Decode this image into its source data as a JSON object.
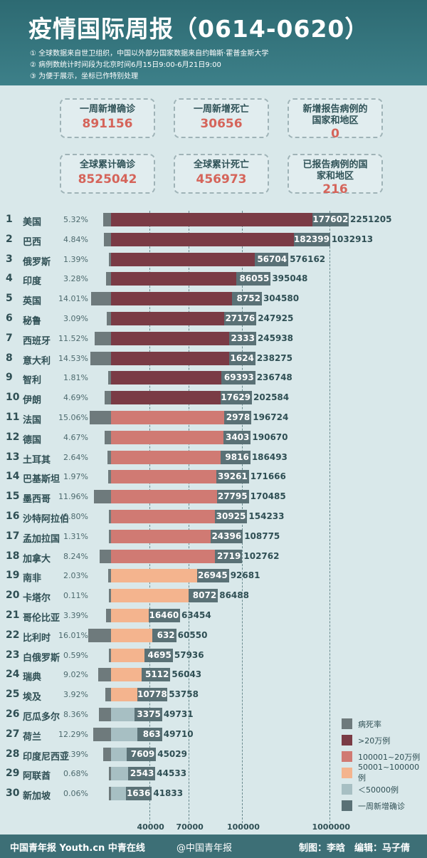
{
  "header": {
    "title": "疫情国际周报（0614-0620）",
    "notes": [
      "① 全球数据来自世卫组织，中国以外部分国家数据来自约翰斯·霍普金斯大学",
      "② 病例数统计时间段为北京时间6月15日9:00-6月21日9:00",
      "③ 为便于展示，坐标已作特别处理"
    ]
  },
  "stats": {
    "weekly_new_confirmed": {
      "label": "一周新增确诊",
      "value": "891156"
    },
    "weekly_new_deaths": {
      "label": "一周新增死亡",
      "value": "30656"
    },
    "new_reporting_countries": {
      "label": "新增报告病例的国家和地区",
      "value": "0"
    },
    "total_confirmed": {
      "label": "全球累计确诊",
      "value": "8525042"
    },
    "total_deaths": {
      "label": "全球累计死亡",
      "value": "456973"
    },
    "reported_countries": {
      "label": "已报告病例的国家和地区",
      "value": "216"
    }
  },
  "colors": {
    "gt200k": "#7a3b45",
    "c100k_200k": "#d07a73",
    "c50k_100k": "#f4b48e",
    "lt50k": "#a7bfc3",
    "weekly_new": "#5a7176",
    "death_rate": "#6e7a7c"
  },
  "chart_data": {
    "type": "bar",
    "xlabel": "",
    "ylabel": "",
    "x_ticks": [
      40000,
      70000,
      100000,
      1000000
    ],
    "legend": [
      {
        "label": "病死率",
        "color": "#6e7a7c"
      },
      {
        "label": ">20万例",
        "color": "#7a3b45"
      },
      {
        "label": "100001~20万例",
        "color": "#d07a73"
      },
      {
        "label": "50001~100000例",
        "color": "#f4b48e"
      },
      {
        "label": "＜50000例",
        "color": "#a7bfc3"
      },
      {
        "label": "一周新增确诊",
        "color": "#5a7176"
      }
    ],
    "countries": [
      {
        "rank": "1",
        "name": "美国",
        "death_rate": "5.32%",
        "rate": 5.32,
        "weekly_new": 177602,
        "total": 2251205
      },
      {
        "rank": "2",
        "name": "巴西",
        "death_rate": "4.84%",
        "rate": 4.84,
        "weekly_new": 182399,
        "total": 1032913
      },
      {
        "rank": "3",
        "name": "俄罗斯",
        "death_rate": "1.39%",
        "rate": 1.39,
        "weekly_new": 56704,
        "total": 576162
      },
      {
        "rank": "4",
        "name": "印度",
        "death_rate": "3.28%",
        "rate": 3.28,
        "weekly_new": 86055,
        "total": 395048
      },
      {
        "rank": "5",
        "name": "英国",
        "death_rate": "14.01%",
        "rate": 14.01,
        "weekly_new": 8752,
        "total": 304580
      },
      {
        "rank": "6",
        "name": "秘鲁",
        "death_rate": "3.09%",
        "rate": 3.09,
        "weekly_new": 27176,
        "total": 247925
      },
      {
        "rank": "7",
        "name": "西班牙",
        "death_rate": "11.52%",
        "rate": 11.52,
        "weekly_new": 2333,
        "total": 245938
      },
      {
        "rank": "8",
        "name": "意大利",
        "death_rate": "14.53%",
        "rate": 14.53,
        "weekly_new": 1624,
        "total": 238275
      },
      {
        "rank": "9",
        "name": "智利",
        "death_rate": "1.81%",
        "rate": 1.81,
        "weekly_new": 69393,
        "total": 236748
      },
      {
        "rank": "10",
        "name": "伊朗",
        "death_rate": "4.69%",
        "rate": 4.69,
        "weekly_new": 17629,
        "total": 202584
      },
      {
        "rank": "11",
        "name": "法国",
        "death_rate": "15.06%",
        "rate": 15.06,
        "weekly_new": 2978,
        "total": 196724
      },
      {
        "rank": "12",
        "name": "德国",
        "death_rate": "4.67%",
        "rate": 4.67,
        "weekly_new": 3403,
        "total": 190670
      },
      {
        "rank": "13",
        "name": "土耳其",
        "death_rate": "2.64%",
        "rate": 2.64,
        "weekly_new": 9816,
        "total": 186493
      },
      {
        "rank": "14",
        "name": "巴基斯坦",
        "death_rate": "1.97%",
        "rate": 1.97,
        "weekly_new": 39261,
        "total": 171666
      },
      {
        "rank": "15",
        "name": "墨西哥",
        "death_rate": "11.96%",
        "rate": 11.96,
        "weekly_new": 27795,
        "total": 170485
      },
      {
        "rank": "16",
        "name": "沙特阿拉伯",
        "death_rate": "0.80%",
        "rate": 0.8,
        "weekly_new": 30925,
        "total": 154233
      },
      {
        "rank": "17",
        "name": "孟加拉国",
        "death_rate": "1.31%",
        "rate": 1.31,
        "weekly_new": 24396,
        "total": 108775
      },
      {
        "rank": "18",
        "name": "加拿大",
        "death_rate": "8.24%",
        "rate": 8.24,
        "weekly_new": 2719,
        "total": 102762
      },
      {
        "rank": "19",
        "name": "南非",
        "death_rate": "2.03%",
        "rate": 2.03,
        "weekly_new": 26945,
        "total": 92681
      },
      {
        "rank": "20",
        "name": "卡塔尔",
        "death_rate": "0.11%",
        "rate": 0.11,
        "weekly_new": 8072,
        "total": 86488
      },
      {
        "rank": "21",
        "name": "哥伦比亚",
        "death_rate": "3.39%",
        "rate": 3.39,
        "weekly_new": 16460,
        "total": 63454
      },
      {
        "rank": "22",
        "name": "比利时",
        "death_rate": "16.01%",
        "rate": 16.01,
        "weekly_new": 632,
        "total": 60550
      },
      {
        "rank": "23",
        "name": "白俄罗斯",
        "death_rate": "0.59%",
        "rate": 0.59,
        "weekly_new": 4695,
        "total": 57936
      },
      {
        "rank": "24",
        "name": "瑞典",
        "death_rate": "9.02%",
        "rate": 9.02,
        "weekly_new": 5112,
        "total": 56043
      },
      {
        "rank": "25",
        "name": "埃及",
        "death_rate": "3.92%",
        "rate": 3.92,
        "weekly_new": 10778,
        "total": 53758
      },
      {
        "rank": "26",
        "name": "厄瓜多尔",
        "death_rate": "8.36%",
        "rate": 8.36,
        "weekly_new": 3375,
        "total": 49731
      },
      {
        "rank": "27",
        "name": "荷兰",
        "death_rate": "12.29%",
        "rate": 12.29,
        "weekly_new": 863,
        "total": 49710
      },
      {
        "rank": "28",
        "name": "印度尼西亚",
        "death_rate": "5.39%",
        "rate": 5.39,
        "weekly_new": 7609,
        "total": 45029
      },
      {
        "rank": "29",
        "name": "阿联酋",
        "death_rate": "0.68%",
        "rate": 0.68,
        "weekly_new": 2543,
        "total": 44533
      },
      {
        "rank": "30",
        "name": "新加坡",
        "death_rate": "0.06%",
        "rate": 0.06,
        "weekly_new": 1636,
        "total": 41833
      }
    ]
  },
  "footer": {
    "logos": "中国青年报 Youth.cn 中青在线",
    "weibo": "@中国青年报",
    "credits": "制图：李晗　编辑：马子倩"
  }
}
